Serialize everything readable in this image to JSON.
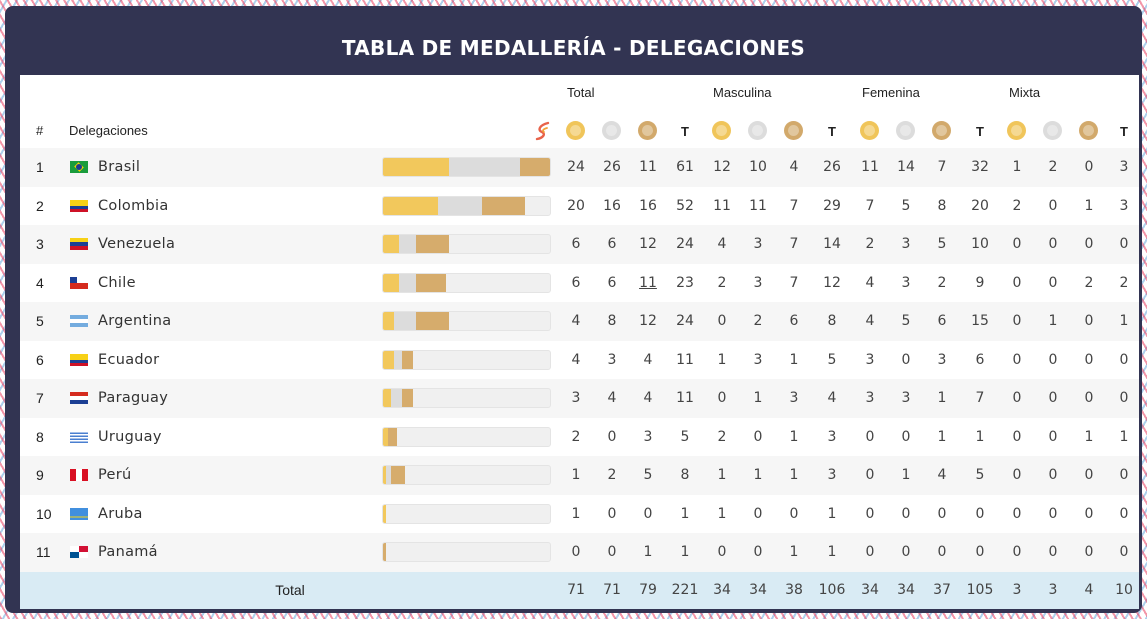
{
  "title": "TABLA DE MEDALLERÍA - DELEGACIONES",
  "groups": [
    "Total",
    "Masculina",
    "Femenina",
    "Mixta"
  ],
  "header": {
    "rank": "#",
    "delegations": "Delegaciones",
    "t_label": "T"
  },
  "colors": {
    "panel": "#323452",
    "gold": "#f0c55a",
    "silver": "#dcdcdc",
    "bronze": "#d2a96b",
    "total_row": "#d9ebf4"
  },
  "rows": [
    {
      "rank": "1",
      "name": "Brasil",
      "flag": "brazil-flag",
      "values": [
        "24",
        "26",
        "11",
        "61",
        "12",
        "10",
        "4",
        "26",
        "11",
        "14",
        "7",
        "32",
        "1",
        "2",
        "0",
        "3"
      ]
    },
    {
      "rank": "2",
      "name": "Colombia",
      "flag": "colombia-flag",
      "values": [
        "20",
        "16",
        "16",
        "52",
        "11",
        "11",
        "7",
        "29",
        "7",
        "5",
        "8",
        "20",
        "2",
        "0",
        "1",
        "3"
      ]
    },
    {
      "rank": "3",
      "name": "Venezuela",
      "flag": "venezuela-flag",
      "values": [
        "6",
        "6",
        "12",
        "24",
        "4",
        "3",
        "7",
        "14",
        "2",
        "3",
        "5",
        "10",
        "0",
        "0",
        "0",
        "0"
      ]
    },
    {
      "rank": "4",
      "name": "Chile",
      "flag": "chile-flag",
      "values": [
        "6",
        "6",
        "11",
        "23",
        "2",
        "3",
        "7",
        "12",
        "4",
        "3",
        "2",
        "9",
        "0",
        "0",
        "2",
        "2"
      ]
    },
    {
      "rank": "5",
      "name": "Argentina",
      "flag": "argentina-flag",
      "values": [
        "4",
        "8",
        "12",
        "24",
        "0",
        "2",
        "6",
        "8",
        "4",
        "5",
        "6",
        "15",
        "0",
        "1",
        "0",
        "1"
      ]
    },
    {
      "rank": "6",
      "name": "Ecuador",
      "flag": "ecuador-flag",
      "values": [
        "4",
        "3",
        "4",
        "11",
        "1",
        "3",
        "1",
        "5",
        "3",
        "0",
        "3",
        "6",
        "0",
        "0",
        "0",
        "0"
      ]
    },
    {
      "rank": "7",
      "name": "Paraguay",
      "flag": "paraguay-flag",
      "values": [
        "3",
        "4",
        "4",
        "11",
        "0",
        "1",
        "3",
        "4",
        "3",
        "3",
        "1",
        "7",
        "0",
        "0",
        "0",
        "0"
      ]
    },
    {
      "rank": "8",
      "name": "Uruguay",
      "flag": "uruguay-flag",
      "values": [
        "2",
        "0",
        "3",
        "5",
        "2",
        "0",
        "1",
        "3",
        "0",
        "0",
        "1",
        "1",
        "0",
        "0",
        "1",
        "1"
      ]
    },
    {
      "rank": "9",
      "name": "Perú",
      "flag": "peru-flag",
      "values": [
        "1",
        "2",
        "5",
        "8",
        "1",
        "1",
        "1",
        "3",
        "0",
        "1",
        "4",
        "5",
        "0",
        "0",
        "0",
        "0"
      ]
    },
    {
      "rank": "10",
      "name": "Aruba",
      "flag": "aruba-flag",
      "values": [
        "1",
        "0",
        "0",
        "1",
        "1",
        "0",
        "0",
        "1",
        "0",
        "0",
        "0",
        "0",
        "0",
        "0",
        "0",
        "0"
      ]
    },
    {
      "rank": "11",
      "name": "Panamá",
      "flag": "panama-flag",
      "values": [
        "0",
        "0",
        "1",
        "1",
        "0",
        "0",
        "1",
        "1",
        "0",
        "0",
        "0",
        "0",
        "0",
        "0",
        "0",
        "0"
      ]
    }
  ],
  "total": {
    "label": "Total",
    "values": [
      "71",
      "71",
      "79",
      "221",
      "34",
      "34",
      "38",
      "106",
      "34",
      "34",
      "37",
      "105",
      "3",
      "3",
      "4",
      "10"
    ]
  }
}
